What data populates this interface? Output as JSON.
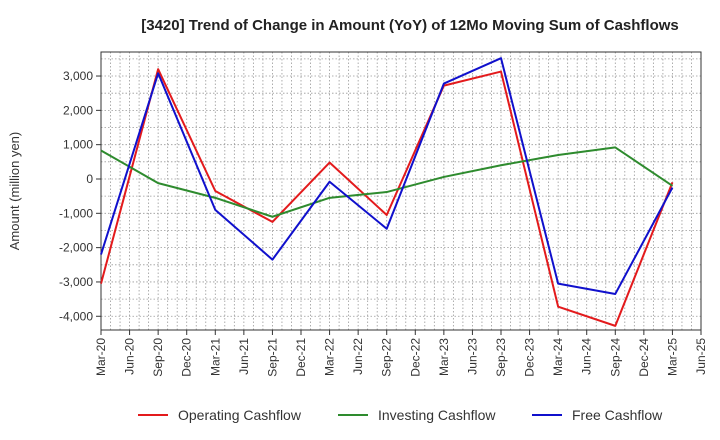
{
  "chart_data": {
    "type": "line",
    "title": "[3420]  Trend of Change in Amount (YoY) of 12Mo Moving Sum of Cashflows",
    "xlabel": "",
    "ylabel": "Amount (million yen)",
    "ylim": [
      -4400,
      3700
    ],
    "yticks": [
      -4000,
      -3000,
      -2000,
      -1000,
      0,
      1000,
      2000,
      3000
    ],
    "ytick_labels": [
      "-4,000",
      "-3,000",
      "-2,000",
      "-1,000",
      "0",
      "1,000",
      "2,000",
      "3,000"
    ],
    "categories": [
      "Mar-20",
      "Jun-20",
      "Sep-20",
      "Dec-20",
      "Mar-21",
      "Jun-21",
      "Sep-21",
      "Dec-21",
      "Mar-22",
      "Jun-22",
      "Sep-22",
      "Dec-22",
      "Mar-23",
      "Jun-23",
      "Sep-23",
      "Dec-23",
      "Mar-24",
      "Jun-24",
      "Sep-24",
      "Dec-24",
      "Mar-25",
      "Jun-25"
    ],
    "grid": true,
    "legend_position": "bottom",
    "series": [
      {
        "name": "Operating Cashflow",
        "color": "#e31a1c",
        "values": [
          -3050,
          null,
          3200,
          null,
          -350,
          null,
          -1250,
          null,
          480,
          null,
          -1050,
          null,
          2720,
          null,
          3130,
          null,
          -3720,
          null,
          -4280,
          null,
          -100,
          null
        ]
      },
      {
        "name": "Investing Cashflow",
        "color": "#2e8b2e",
        "values": [
          830,
          null,
          -120,
          null,
          -550,
          null,
          -1100,
          null,
          -550,
          null,
          -380,
          null,
          60,
          null,
          400,
          null,
          700,
          null,
          920,
          null,
          -200,
          null
        ]
      },
      {
        "name": "Free Cashflow",
        "color": "#1010cc",
        "values": [
          -2200,
          null,
          3080,
          null,
          -900,
          null,
          -2350,
          null,
          -80,
          null,
          -1450,
          null,
          2780,
          null,
          3520,
          null,
          -3050,
          null,
          -3350,
          null,
          -250,
          null
        ]
      }
    ]
  }
}
